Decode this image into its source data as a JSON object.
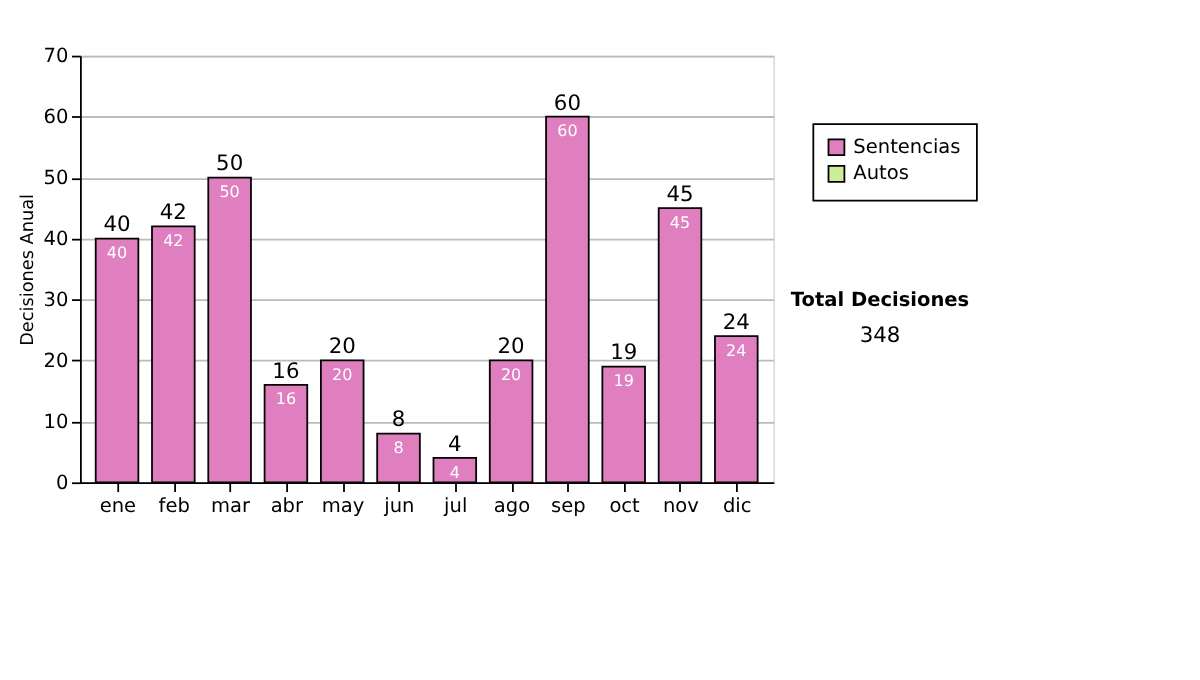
{
  "chart_data": {
    "type": "bar",
    "ylabel": "Decisiones Anual",
    "categories": [
      "ene",
      "feb",
      "mar",
      "abr",
      "may",
      "jun",
      "jul",
      "ago",
      "sep",
      "oct",
      "nov",
      "dic"
    ],
    "series": [
      {
        "name": "Sentencias",
        "color": "#e07fc0",
        "values": [
          40,
          42,
          50,
          16,
          20,
          8,
          4,
          20,
          60,
          19,
          45,
          24
        ]
      },
      {
        "name": "Autos",
        "color": "#ccee99",
        "values": [
          null,
          null,
          null,
          null,
          null,
          null,
          null,
          null,
          null,
          null,
          null,
          null
        ]
      }
    ],
    "stacked": true,
    "data_labels": true,
    "totals": [
      "40",
      "42",
      "50",
      "16",
      "20",
      "8",
      "4",
      "20",
      "60",
      "19",
      "45",
      "24"
    ],
    "ylim": [
      0,
      70
    ],
    "yticks": [
      0,
      10,
      20,
      30,
      40,
      50,
      60,
      70
    ],
    "grid": "y",
    "legend": "top right",
    "annotations": [
      "Total Decisiones",
      "348"
    ]
  }
}
